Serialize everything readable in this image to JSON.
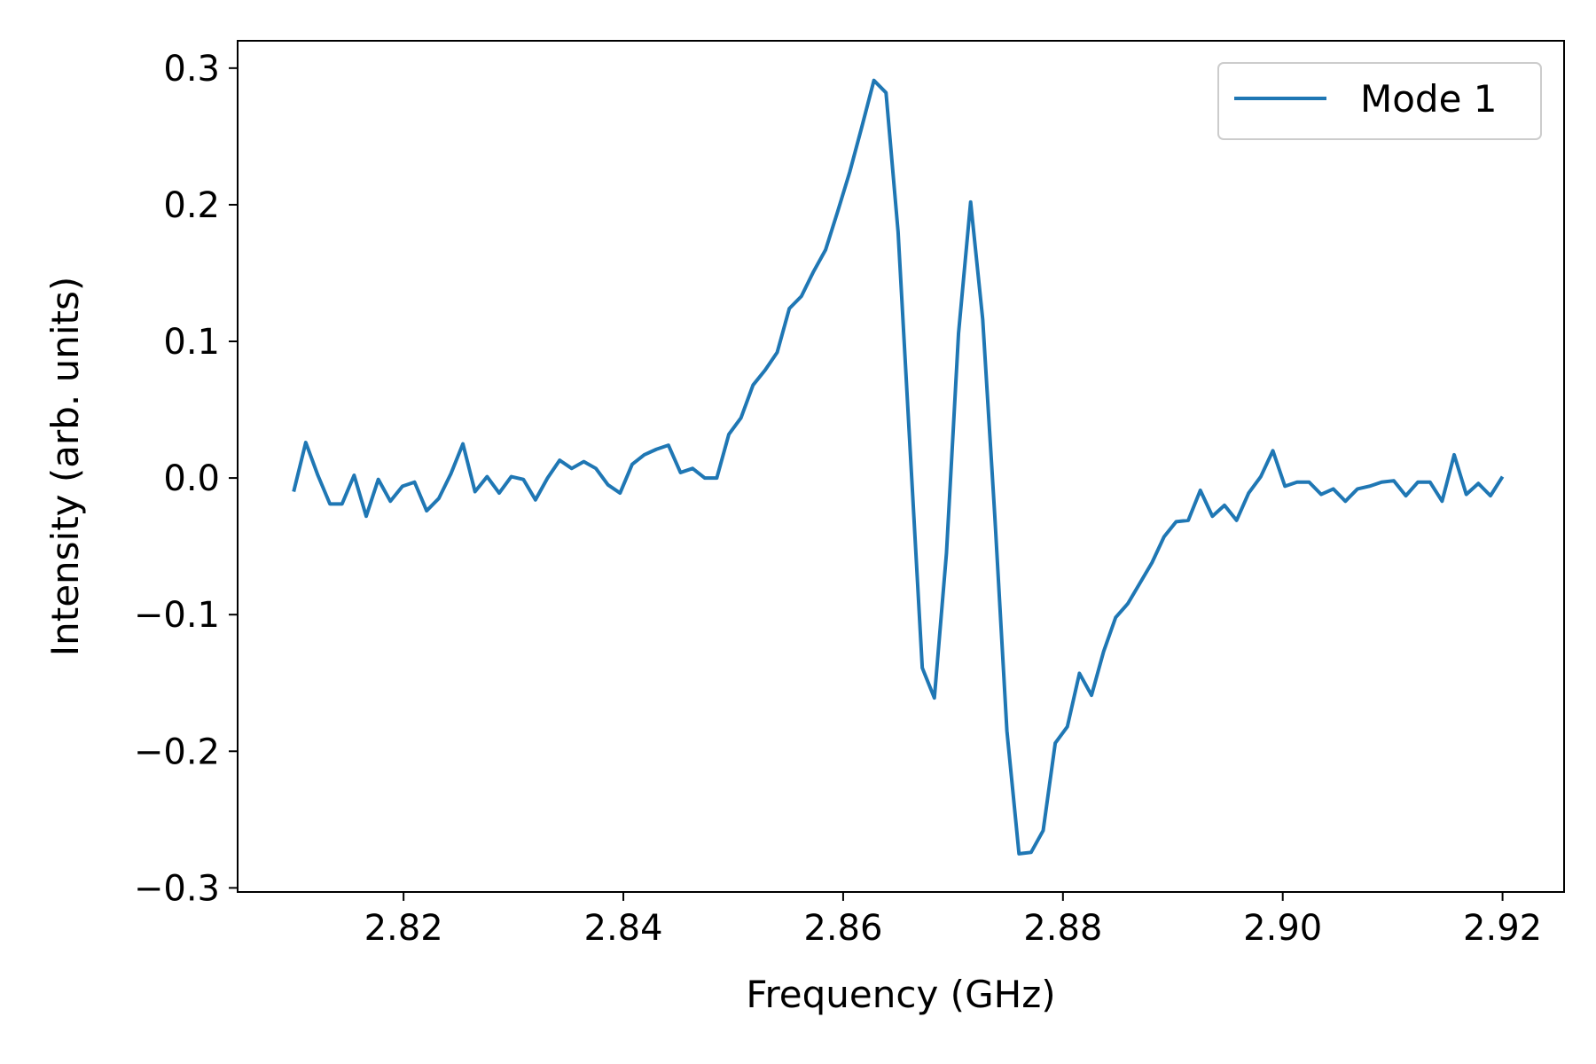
{
  "chart_data": {
    "type": "line",
    "title": "",
    "xlabel": "Frequency (GHz)",
    "ylabel": "Intensity (arb. units)",
    "xlim": [
      2.8049,
      2.9256
    ],
    "ylim": [
      -0.303,
      0.32
    ],
    "xticks": [
      2.82,
      2.84,
      2.86,
      2.88,
      2.9,
      2.92
    ],
    "xtick_labels": [
      "2.82",
      "2.84",
      "2.86",
      "2.88",
      "2.90",
      "2.92"
    ],
    "yticks": [
      -0.3,
      -0.2,
      -0.1,
      0.0,
      0.1,
      0.2,
      0.3
    ],
    "ytick_labels": [
      "−0.3",
      "−0.2",
      "−0.1",
      "0.0",
      "0.1",
      "0.2",
      "0.3"
    ],
    "grid": false,
    "legend": {
      "position": "top-right"
    },
    "series": [
      {
        "name": "Mode 1",
        "color": "#1f77b4",
        "x": [
          2.81,
          2.8111,
          2.8122,
          2.8133,
          2.8144,
          2.8155,
          2.8166,
          2.8177,
          2.8188,
          2.8199,
          2.821,
          2.8221,
          2.8232,
          2.8243,
          2.8254,
          2.8265,
          2.8276,
          2.8287,
          2.8298,
          2.8309,
          2.832,
          2.8331,
          2.8342,
          2.8353,
          2.8364,
          2.8375,
          2.8386,
          2.8397,
          2.8408,
          2.8419,
          2.843,
          2.8441,
          2.8452,
          2.8463,
          2.8474,
          2.8485,
          2.8496,
          2.8507,
          2.8518,
          2.8529,
          2.854,
          2.8551,
          2.8562,
          2.8573,
          2.8584,
          2.8595,
          2.8606,
          2.8617,
          2.8628,
          2.8639,
          2.865,
          2.8661,
          2.8672,
          2.8683,
          2.8694,
          2.8705,
          2.8716,
          2.8727,
          2.8738,
          2.8749,
          2.876,
          2.8771,
          2.8782,
          2.8793,
          2.8804,
          2.8815,
          2.8826,
          2.8837,
          2.8848,
          2.8859,
          2.887,
          2.8881,
          2.8892,
          2.8903,
          2.8914,
          2.8925,
          2.8936,
          2.8947,
          2.8958,
          2.8969,
          2.898,
          2.8991,
          2.9002,
          2.9013,
          2.9024,
          2.9035,
          2.9046,
          2.9057,
          2.9068,
          2.9079,
          2.909,
          2.9101,
          2.9112,
          2.9123,
          2.9134,
          2.9145,
          2.9156,
          2.9167,
          2.9178,
          2.9189,
          2.92
        ],
        "y": [
          -0.01,
          0.026,
          0.002,
          -0.019,
          -0.019,
          0.002,
          -0.028,
          -0.001,
          -0.017,
          -0.006,
          -0.003,
          -0.024,
          -0.015,
          0.003,
          0.025,
          -0.01,
          0.001,
          -0.011,
          0.001,
          -0.001,
          -0.016,
          0.0,
          0.013,
          0.007,
          0.012,
          0.007,
          -0.005,
          -0.011,
          0.01,
          0.017,
          0.021,
          0.024,
          0.004,
          0.007,
          0.0,
          0.0,
          0.032,
          0.044,
          0.068,
          0.079,
          0.092,
          0.124,
          0.133,
          0.151,
          0.167,
          0.195,
          0.224,
          0.257,
          0.291,
          0.282,
          0.18,
          0.02,
          -0.139,
          -0.161,
          -0.055,
          0.106,
          0.202,
          0.116,
          -0.028,
          -0.185,
          -0.275,
          -0.274,
          -0.258,
          -0.194,
          -0.182,
          -0.143,
          -0.159,
          -0.127,
          -0.102,
          -0.092,
          -0.077,
          -0.062,
          -0.043,
          -0.032,
          -0.031,
          -0.009,
          -0.028,
          -0.02,
          -0.031,
          -0.011,
          0.001,
          0.02,
          -0.006,
          -0.003,
          -0.003,
          -0.012,
          -0.008,
          -0.017,
          -0.008,
          -0.006,
          -0.003,
          -0.002,
          -0.013,
          -0.003,
          -0.003,
          -0.017,
          0.017,
          -0.012,
          -0.004,
          -0.013,
          0.001
        ]
      }
    ]
  }
}
